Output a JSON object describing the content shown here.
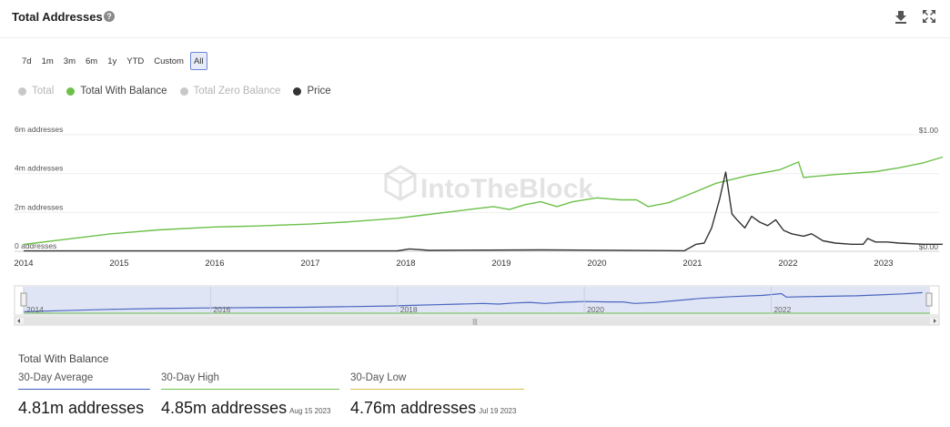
{
  "header": {
    "title": "Total Addresses",
    "help_glyph": "?",
    "download_icon": "download-icon",
    "expand_icon": "expand-icon"
  },
  "ranges": [
    {
      "label": "7d",
      "active": false
    },
    {
      "label": "1m",
      "active": false
    },
    {
      "label": "3m",
      "active": false
    },
    {
      "label": "6m",
      "active": false
    },
    {
      "label": "1y",
      "active": false
    },
    {
      "label": "YTD",
      "active": false
    },
    {
      "label": "Custom",
      "active": false
    },
    {
      "label": "All",
      "active": true
    }
  ],
  "legend": [
    {
      "label": "Total",
      "color": "#c8c8c8",
      "enabled": false
    },
    {
      "label": "Total With Balance",
      "color": "#6cc04a",
      "enabled": true
    },
    {
      "label": "Total Zero Balance",
      "color": "#c8c8c8",
      "enabled": false
    },
    {
      "label": "Price",
      "color": "#333333",
      "enabled": true
    }
  ],
  "chart_data": {
    "type": "line",
    "watermark": "IntoTheBlock",
    "x_ticks": [
      "2014",
      "2015",
      "2016",
      "2017",
      "2018",
      "2019",
      "2020",
      "2021",
      "2022",
      "2023"
    ],
    "y_left": {
      "ticks": [
        "0 addresses",
        "2m addresses",
        "4m addresses",
        "6m addresses"
      ],
      "range": [
        0,
        6000000
      ]
    },
    "y_right": {
      "ticks": [
        "$0.00",
        "$1.00"
      ],
      "range": [
        0,
        1
      ]
    },
    "grid": true,
    "series": [
      {
        "name": "Total With Balance",
        "axis": "left",
        "color": "#6cc04a",
        "points": [
          [
            "2014-01-01",
            350000
          ],
          [
            "2014-06-01",
            600000
          ],
          [
            "2014-12-01",
            900000
          ],
          [
            "2015-06-01",
            1100000
          ],
          [
            "2016-01-01",
            1250000
          ],
          [
            "2016-06-01",
            1300000
          ],
          [
            "2017-01-01",
            1400000
          ],
          [
            "2017-06-01",
            1520000
          ],
          [
            "2017-12-01",
            1700000
          ],
          [
            "2018-03-01",
            1850000
          ],
          [
            "2018-06-01",
            2000000
          ],
          [
            "2018-09-01",
            2150000
          ],
          [
            "2018-12-01",
            2300000
          ],
          [
            "2019-02-01",
            2150000
          ],
          [
            "2019-04-01",
            2400000
          ],
          [
            "2019-06-01",
            2550000
          ],
          [
            "2019-08-01",
            2300000
          ],
          [
            "2019-10-01",
            2550000
          ],
          [
            "2020-01-01",
            2750000
          ],
          [
            "2020-04-01",
            2650000
          ],
          [
            "2020-06-01",
            2650000
          ],
          [
            "2020-07-15",
            2300000
          ],
          [
            "2020-10-01",
            2500000
          ],
          [
            "2021-01-01",
            3000000
          ],
          [
            "2021-04-01",
            3500000
          ],
          [
            "2021-08-01",
            3900000
          ],
          [
            "2021-12-01",
            4200000
          ],
          [
            "2022-02-10",
            4600000
          ],
          [
            "2022-03-01",
            3800000
          ],
          [
            "2022-07-01",
            3950000
          ],
          [
            "2022-12-01",
            4100000
          ],
          [
            "2023-03-01",
            4300000
          ],
          [
            "2023-06-01",
            4550000
          ],
          [
            "2023-08-15",
            4850000
          ]
        ]
      },
      {
        "name": "Price",
        "axis": "right",
        "color": "#333333",
        "points": [
          [
            "2014-01-01",
            0.003
          ],
          [
            "2017-12-01",
            0.004
          ],
          [
            "2018-01-15",
            0.02
          ],
          [
            "2018-04-01",
            0.008
          ],
          [
            "2019-06-01",
            0.012
          ],
          [
            "2020-12-01",
            0.005
          ],
          [
            "2021-01-15",
            0.06
          ],
          [
            "2021-02-15",
            0.07
          ],
          [
            "2021-03-15",
            0.2
          ],
          [
            "2021-04-15",
            0.45
          ],
          [
            "2021-05-08",
            0.68
          ],
          [
            "2021-06-01",
            0.32
          ],
          [
            "2021-06-20",
            0.27
          ],
          [
            "2021-07-20",
            0.2
          ],
          [
            "2021-08-15",
            0.3
          ],
          [
            "2021-09-15",
            0.25
          ],
          [
            "2021-10-15",
            0.22
          ],
          [
            "2021-11-15",
            0.27
          ],
          [
            "2021-12-15",
            0.18
          ],
          [
            "2022-01-15",
            0.15
          ],
          [
            "2022-03-01",
            0.13
          ],
          [
            "2022-04-01",
            0.15
          ],
          [
            "2022-05-15",
            0.09
          ],
          [
            "2022-07-01",
            0.07
          ],
          [
            "2022-09-01",
            0.06
          ],
          [
            "2022-10-15",
            0.06
          ],
          [
            "2022-11-01",
            0.11
          ],
          [
            "2022-12-01",
            0.08
          ],
          [
            "2023-01-15",
            0.08
          ],
          [
            "2023-03-01",
            0.07
          ],
          [
            "2023-06-01",
            0.06
          ],
          [
            "2023-08-15",
            0.06
          ]
        ]
      }
    ],
    "navigator": {
      "x_ticks": [
        "2014",
        "2016",
        "2018",
        "2020",
        "2022"
      ],
      "scrollbar_glyph": "|||"
    }
  },
  "stats": {
    "title": "Total With Balance",
    "items": [
      {
        "label": "30-Day Average",
        "value": "4.81m addresses",
        "date": "",
        "color": "#3b5fc0"
      },
      {
        "label": "30-Day High",
        "value": "4.85m addresses",
        "date": "Aug 15 2023",
        "color": "#6cc04a"
      },
      {
        "label": "30-Day Low",
        "value": "4.76m addresses",
        "date": "Jul 19 2023",
        "color": "#d8c04a"
      }
    ]
  }
}
